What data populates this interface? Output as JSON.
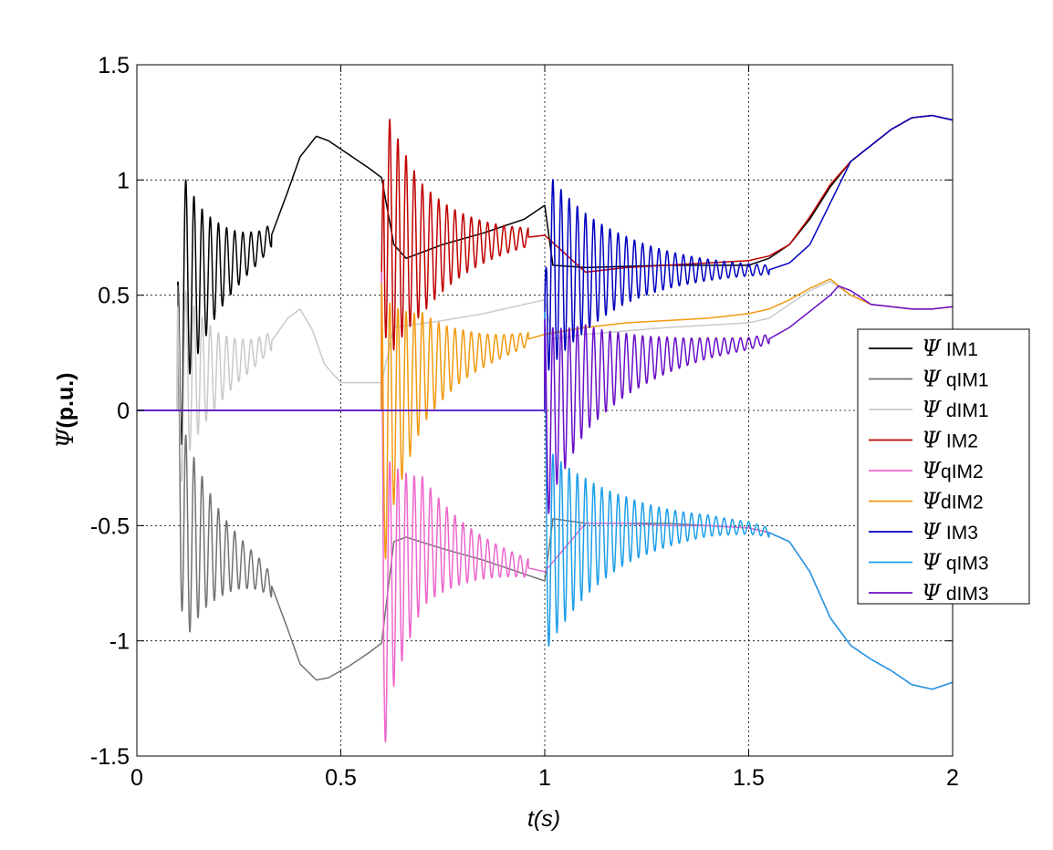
{
  "chart_data": {
    "type": "line",
    "title": "",
    "xlabel": "t(s)",
    "ylabel_symbol": "Ψ",
    "ylabel_unit": "(p.u.)",
    "xlim": [
      0,
      2
    ],
    "ylim": [
      -1.5,
      1.5
    ],
    "x_ticks": [
      0,
      0.5,
      1,
      1.5,
      2
    ],
    "x_tick_labels": [
      "0",
      "0.5",
      "1",
      "1.5",
      "2"
    ],
    "y_ticks": [
      -1.5,
      -1,
      -0.5,
      0,
      0.5,
      1,
      1.5
    ],
    "y_tick_labels": [
      "-1.5",
      "-1",
      "-0.5",
      "0",
      "0.5",
      "1",
      "1.5"
    ],
    "grid": true,
    "legend_position": "right",
    "events": [
      0.1,
      0.6,
      1.0
    ],
    "series": [
      {
        "name": "Ψ IM1",
        "legend_symbol": "Ψ",
        "legend_text": " IM1",
        "color": "#000000",
        "envelope": {
          "start": 0.1,
          "end": 0.33,
          "amp_start": 0.55,
          "amp_end": 0.05,
          "freq_hz": 50
        },
        "points": [
          [
            0.0,
            0.0
          ],
          [
            0.1,
            0.0
          ],
          [
            0.115,
            0.55
          ],
          [
            0.16,
            0.58
          ],
          [
            0.2,
            0.62
          ],
          [
            0.25,
            0.66
          ],
          [
            0.28,
            0.69
          ],
          [
            0.3,
            0.71
          ],
          [
            0.33,
            0.76
          ],
          [
            0.37,
            0.95
          ],
          [
            0.4,
            1.1
          ],
          [
            0.44,
            1.19
          ],
          [
            0.47,
            1.17
          ],
          [
            0.52,
            1.11
          ],
          [
            0.57,
            1.05
          ],
          [
            0.6,
            1.01
          ],
          [
            0.63,
            0.72
          ],
          [
            0.66,
            0.66
          ],
          [
            0.75,
            0.72
          ],
          [
            0.85,
            0.77
          ],
          [
            0.95,
            0.83
          ],
          [
            1.0,
            0.89
          ],
          [
            1.02,
            0.63
          ],
          [
            1.1,
            0.62
          ],
          [
            1.3,
            0.63
          ],
          [
            1.5,
            0.63
          ],
          [
            1.55,
            0.66
          ],
          [
            1.6,
            0.72
          ],
          [
            1.65,
            0.83
          ],
          [
            1.7,
            0.97
          ],
          [
            1.75,
            1.08
          ],
          [
            1.8,
            1.15
          ],
          [
            1.85,
            1.22
          ],
          [
            1.9,
            1.27
          ],
          [
            1.95,
            1.28
          ],
          [
            2.0,
            1.26
          ]
        ]
      },
      {
        "name": "Ψ qIM1",
        "legend_symbol": "Ψ",
        "legend_text": " qIM1",
        "color": "#727272",
        "envelope": {
          "start": 0.1,
          "end": 0.33,
          "amp_start": 0.55,
          "amp_end": 0.05,
          "freq_hz": 50
        },
        "points": [
          [
            0.0,
            0.0
          ],
          [
            0.1,
            0.0
          ],
          [
            0.115,
            -0.55
          ],
          [
            0.16,
            -0.58
          ],
          [
            0.2,
            -0.62
          ],
          [
            0.25,
            -0.66
          ],
          [
            0.28,
            -0.69
          ],
          [
            0.3,
            -0.71
          ],
          [
            0.33,
            -0.76
          ],
          [
            0.37,
            -0.95
          ],
          [
            0.4,
            -1.1
          ],
          [
            0.44,
            -1.17
          ],
          [
            0.47,
            -1.16
          ],
          [
            0.52,
            -1.11
          ],
          [
            0.57,
            -1.05
          ],
          [
            0.6,
            -1.01
          ],
          [
            0.63,
            -0.57
          ],
          [
            0.66,
            -0.55
          ],
          [
            0.75,
            -0.6
          ],
          [
            0.85,
            -0.65
          ],
          [
            0.95,
            -0.71
          ],
          [
            1.0,
            -0.74
          ],
          [
            1.02,
            -0.47
          ],
          [
            1.1,
            -0.49
          ],
          [
            1.3,
            -0.49
          ],
          [
            1.5,
            -0.51
          ],
          [
            1.55,
            -0.53
          ],
          [
            1.6,
            -0.57
          ],
          [
            1.65,
            -0.7
          ],
          [
            1.7,
            -0.9
          ],
          [
            1.75,
            -1.02
          ],
          [
            1.8,
            -1.08
          ],
          [
            1.85,
            -1.13
          ],
          [
            1.9,
            -1.19
          ],
          [
            1.95,
            -1.21
          ],
          [
            2.0,
            -1.18
          ]
        ]
      },
      {
        "name": "Ψ dIM1",
        "legend_symbol": "Ψ",
        "legend_text": " dIM1",
        "color": "#c9c9c9",
        "envelope": {
          "start": 0.1,
          "end": 0.33,
          "amp_start": 0.45,
          "amp_end": 0.04,
          "freq_hz": 50
        },
        "points": [
          [
            0.0,
            0.0
          ],
          [
            0.1,
            0.0
          ],
          [
            0.115,
            0.15
          ],
          [
            0.2,
            0.18
          ],
          [
            0.28,
            0.24
          ],
          [
            0.33,
            0.3
          ],
          [
            0.37,
            0.4
          ],
          [
            0.4,
            0.44
          ],
          [
            0.43,
            0.35
          ],
          [
            0.46,
            0.2
          ],
          [
            0.5,
            0.12
          ],
          [
            0.6,
            0.12
          ],
          [
            0.63,
            0.36
          ],
          [
            0.75,
            0.39
          ],
          [
            0.85,
            0.42
          ],
          [
            0.95,
            0.46
          ],
          [
            1.0,
            0.48
          ],
          [
            1.02,
            0.31
          ],
          [
            1.1,
            0.33
          ],
          [
            1.3,
            0.36
          ],
          [
            1.5,
            0.38
          ],
          [
            1.55,
            0.4
          ],
          [
            1.6,
            0.46
          ],
          [
            1.65,
            0.52
          ],
          [
            1.7,
            0.56
          ],
          [
            1.75,
            0.5
          ],
          [
            1.8,
            0.46
          ],
          [
            1.85,
            0.45
          ],
          [
            1.9,
            0.44
          ],
          [
            1.95,
            0.44
          ],
          [
            2.0,
            0.45
          ]
        ]
      },
      {
        "name": "Ψ IM2",
        "legend_symbol": "Ψ",
        "legend_text": " IM2",
        "color": "#c00000",
        "envelope": {
          "start": 0.6,
          "end": 0.96,
          "amp_start": 0.6,
          "amp_end": 0.04,
          "freq_hz": 50
        },
        "points": [
          [
            0.0,
            0.0
          ],
          [
            0.6,
            0.0
          ],
          [
            0.605,
            1.0
          ],
          [
            0.615,
            0.75
          ],
          [
            0.7,
            0.7
          ],
          [
            0.8,
            0.72
          ],
          [
            0.9,
            0.74
          ],
          [
            1.0,
            0.76
          ],
          [
            1.1,
            0.6
          ],
          [
            1.2,
            0.62
          ],
          [
            1.3,
            0.63
          ],
          [
            1.4,
            0.64
          ],
          [
            1.5,
            0.65
          ],
          [
            1.55,
            0.67
          ],
          [
            1.6,
            0.72
          ],
          [
            1.65,
            0.84
          ],
          [
            1.7,
            0.98
          ],
          [
            1.75,
            1.08
          ],
          [
            1.8,
            1.15
          ],
          [
            1.85,
            1.22
          ],
          [
            1.9,
            1.27
          ],
          [
            1.95,
            1.28
          ],
          [
            2.0,
            1.26
          ]
        ]
      },
      {
        "name": "Ψ qIM2",
        "legend_symbol": "Ψ",
        "legend_text": "qIM2",
        "color": "#ee66cc",
        "envelope": {
          "start": 0.6,
          "end": 0.96,
          "amp_start": 0.6,
          "amp_end": 0.04,
          "freq_hz": 50
        },
        "points": [
          [
            0.0,
            0.0
          ],
          [
            0.6,
            0.0
          ],
          [
            0.605,
            -1.0
          ],
          [
            0.615,
            -0.75
          ],
          [
            0.7,
            -0.57
          ],
          [
            0.8,
            -0.62
          ],
          [
            0.9,
            -0.66
          ],
          [
            1.0,
            -0.7
          ],
          [
            1.1,
            -0.49
          ],
          [
            1.2,
            -0.49
          ],
          [
            1.3,
            -0.5
          ],
          [
            1.4,
            -0.5
          ],
          [
            1.5,
            -0.51
          ],
          [
            1.55,
            -0.53
          ],
          [
            1.6,
            -0.57
          ],
          [
            1.65,
            -0.7
          ],
          [
            1.7,
            -0.9
          ],
          [
            1.75,
            -1.02
          ],
          [
            1.8,
            -1.08
          ],
          [
            1.85,
            -1.13
          ],
          [
            1.9,
            -1.19
          ],
          [
            1.95,
            -1.21
          ],
          [
            2.0,
            -1.18
          ]
        ]
      },
      {
        "name": "Ψ dIM2",
        "legend_symbol": "Ψ",
        "legend_text": "dIM2",
        "color": "#f09a10",
        "envelope": {
          "start": 0.6,
          "end": 0.96,
          "amp_start": 0.55,
          "amp_end": 0.03,
          "freq_hz": 50
        },
        "points": [
          [
            0.0,
            0.0
          ],
          [
            0.6,
            0.0
          ],
          [
            0.605,
            -0.2
          ],
          [
            0.62,
            0.0
          ],
          [
            0.7,
            0.18
          ],
          [
            0.8,
            0.24
          ],
          [
            0.9,
            0.28
          ],
          [
            1.0,
            0.33
          ],
          [
            1.1,
            0.36
          ],
          [
            1.2,
            0.38
          ],
          [
            1.3,
            0.39
          ],
          [
            1.4,
            0.4
          ],
          [
            1.5,
            0.42
          ],
          [
            1.55,
            0.44
          ],
          [
            1.6,
            0.48
          ],
          [
            1.65,
            0.53
          ],
          [
            1.7,
            0.57
          ],
          [
            1.75,
            0.5
          ],
          [
            1.8,
            0.46
          ],
          [
            1.85,
            0.45
          ],
          [
            1.9,
            0.44
          ],
          [
            1.95,
            0.44
          ],
          [
            2.0,
            0.45
          ]
        ]
      },
      {
        "name": "Ψ IM3",
        "legend_symbol": "Ψ",
        "legend_text": " IM3",
        "color": "#0000c0",
        "envelope": {
          "start": 1.0,
          "end": 1.55,
          "amp_start": 0.45,
          "amp_end": 0.02,
          "freq_hz": 50
        },
        "points": [
          [
            0.0,
            0.0
          ],
          [
            1.0,
            0.0
          ],
          [
            1.005,
            0.6
          ],
          [
            1.1,
            0.6
          ],
          [
            1.2,
            0.61
          ],
          [
            1.3,
            0.61
          ],
          [
            1.4,
            0.61
          ],
          [
            1.5,
            0.61
          ],
          [
            1.55,
            0.61
          ],
          [
            1.6,
            0.64
          ],
          [
            1.65,
            0.72
          ],
          [
            1.7,
            0.9
          ],
          [
            1.75,
            1.08
          ],
          [
            1.8,
            1.15
          ],
          [
            1.85,
            1.22
          ],
          [
            1.9,
            1.27
          ],
          [
            1.95,
            1.28
          ],
          [
            2.0,
            1.26
          ]
        ]
      },
      {
        "name": "Ψ qIM3",
        "legend_symbol": "Ψ",
        "legend_text": " qIM3",
        "color": "#1e9eea",
        "envelope": {
          "start": 1.0,
          "end": 1.55,
          "amp_start": 0.45,
          "amp_end": 0.02,
          "freq_hz": 50
        },
        "points": [
          [
            0.0,
            0.0
          ],
          [
            1.0,
            0.0
          ],
          [
            1.005,
            -0.6
          ],
          [
            1.1,
            -0.55
          ],
          [
            1.2,
            -0.52
          ],
          [
            1.3,
            -0.51
          ],
          [
            1.4,
            -0.5
          ],
          [
            1.5,
            -0.51
          ],
          [
            1.55,
            -0.53
          ],
          [
            1.6,
            -0.57
          ],
          [
            1.65,
            -0.7
          ],
          [
            1.7,
            -0.9
          ],
          [
            1.75,
            -1.02
          ],
          [
            1.8,
            -1.08
          ],
          [
            1.85,
            -1.13
          ],
          [
            1.9,
            -1.19
          ],
          [
            1.95,
            -1.21
          ],
          [
            2.0,
            -1.18
          ]
        ]
      },
      {
        "name": "Ψ dIM3",
        "legend_symbol": "Ψ",
        "legend_text": " dIM3",
        "color": "#6a0dc8",
        "envelope": {
          "start": 1.0,
          "end": 1.55,
          "amp_start": 0.4,
          "amp_end": 0.02,
          "freq_hz": 50
        },
        "points": [
          [
            0.0,
            0.0
          ],
          [
            1.0,
            0.0
          ],
          [
            1.005,
            -0.1
          ],
          [
            1.02,
            0.0
          ],
          [
            1.1,
            0.14
          ],
          [
            1.2,
            0.2
          ],
          [
            1.3,
            0.24
          ],
          [
            1.4,
            0.27
          ],
          [
            1.5,
            0.29
          ],
          [
            1.55,
            0.31
          ],
          [
            1.6,
            0.36
          ],
          [
            1.65,
            0.43
          ],
          [
            1.7,
            0.5
          ],
          [
            1.72,
            0.54
          ],
          [
            1.75,
            0.52
          ],
          [
            1.8,
            0.46
          ],
          [
            1.85,
            0.45
          ],
          [
            1.9,
            0.44
          ],
          [
            1.95,
            0.44
          ],
          [
            2.0,
            0.45
          ]
        ]
      }
    ]
  }
}
